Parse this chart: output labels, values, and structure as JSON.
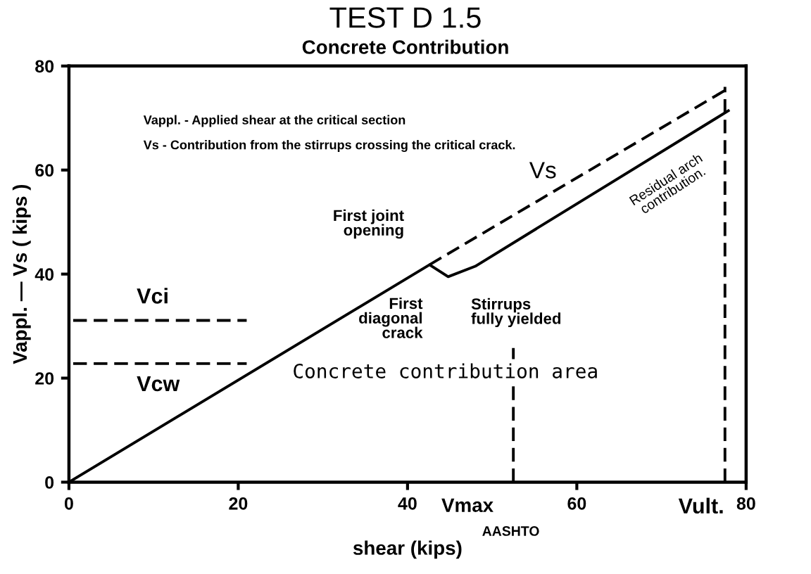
{
  "chart_data": {
    "type": "line",
    "title": "TEST D 1.5",
    "subtitle": "Concrete Contribution",
    "xlabel": "shear (kips)",
    "ylabel": "Vappl. — Vs ( kips )",
    "xlim": [
      0,
      80
    ],
    "ylim": [
      0,
      80
    ],
    "xticks": [
      0,
      20,
      40,
      60,
      80
    ],
    "yticks": [
      0,
      20,
      40,
      60,
      80
    ],
    "grid": false,
    "legend": false,
    "marker": "none",
    "series": [
      {
        "color": "#000000",
        "line_style": "solid",
        "x": [
          0,
          42.6,
          44.8,
          48,
          77.9
        ],
        "values": [
          0,
          41.8,
          39.5,
          41.5,
          71.4
        ]
      },
      {
        "name": "Vs",
        "color": "#000000",
        "line_style": "dashed",
        "x": [
          42.6,
          77.9
        ],
        "values": [
          41.8,
          75.7
        ]
      },
      {
        "name": "Vci",
        "color": "#000000",
        "line_style": "dashed",
        "x": [
          0.5,
          21
        ],
        "values": [
          31.1,
          31.1
        ]
      },
      {
        "name": "Vcw",
        "color": "#000000",
        "line_style": "dashed",
        "x": [
          0.5,
          21
        ],
        "values": [
          22.8,
          22.8
        ]
      },
      {
        "name": "Vmax",
        "color": "#000000",
        "line_style": "dashed",
        "x": [
          52.5,
          52.5
        ],
        "values": [
          0,
          25.8
        ]
      },
      {
        "name": "Vult.",
        "color": "#000000",
        "line_style": "dashed",
        "x": [
          77.5,
          77.5
        ],
        "values": [
          0,
          76
        ]
      }
    ],
    "annotations": [
      "Vappl. - Applied shear at the critical section",
      "Vs - Contribution from the stirrups crossing the critical crack.",
      {
        "text": "First joint\nopening",
        "x": 42.6,
        "y": 41.8
      },
      {
        "text": "First\ndiagonal\ncrack",
        "x": 44.8,
        "y": 39.5
      },
      {
        "text": "Stirrups\nfully yielded",
        "x": 52.5,
        "y": 25.8
      },
      {
        "text": "Residual arch\ncontribution.",
        "x": 68,
        "y": 62
      },
      "Concrete contribution area",
      "AASHTO"
    ]
  }
}
